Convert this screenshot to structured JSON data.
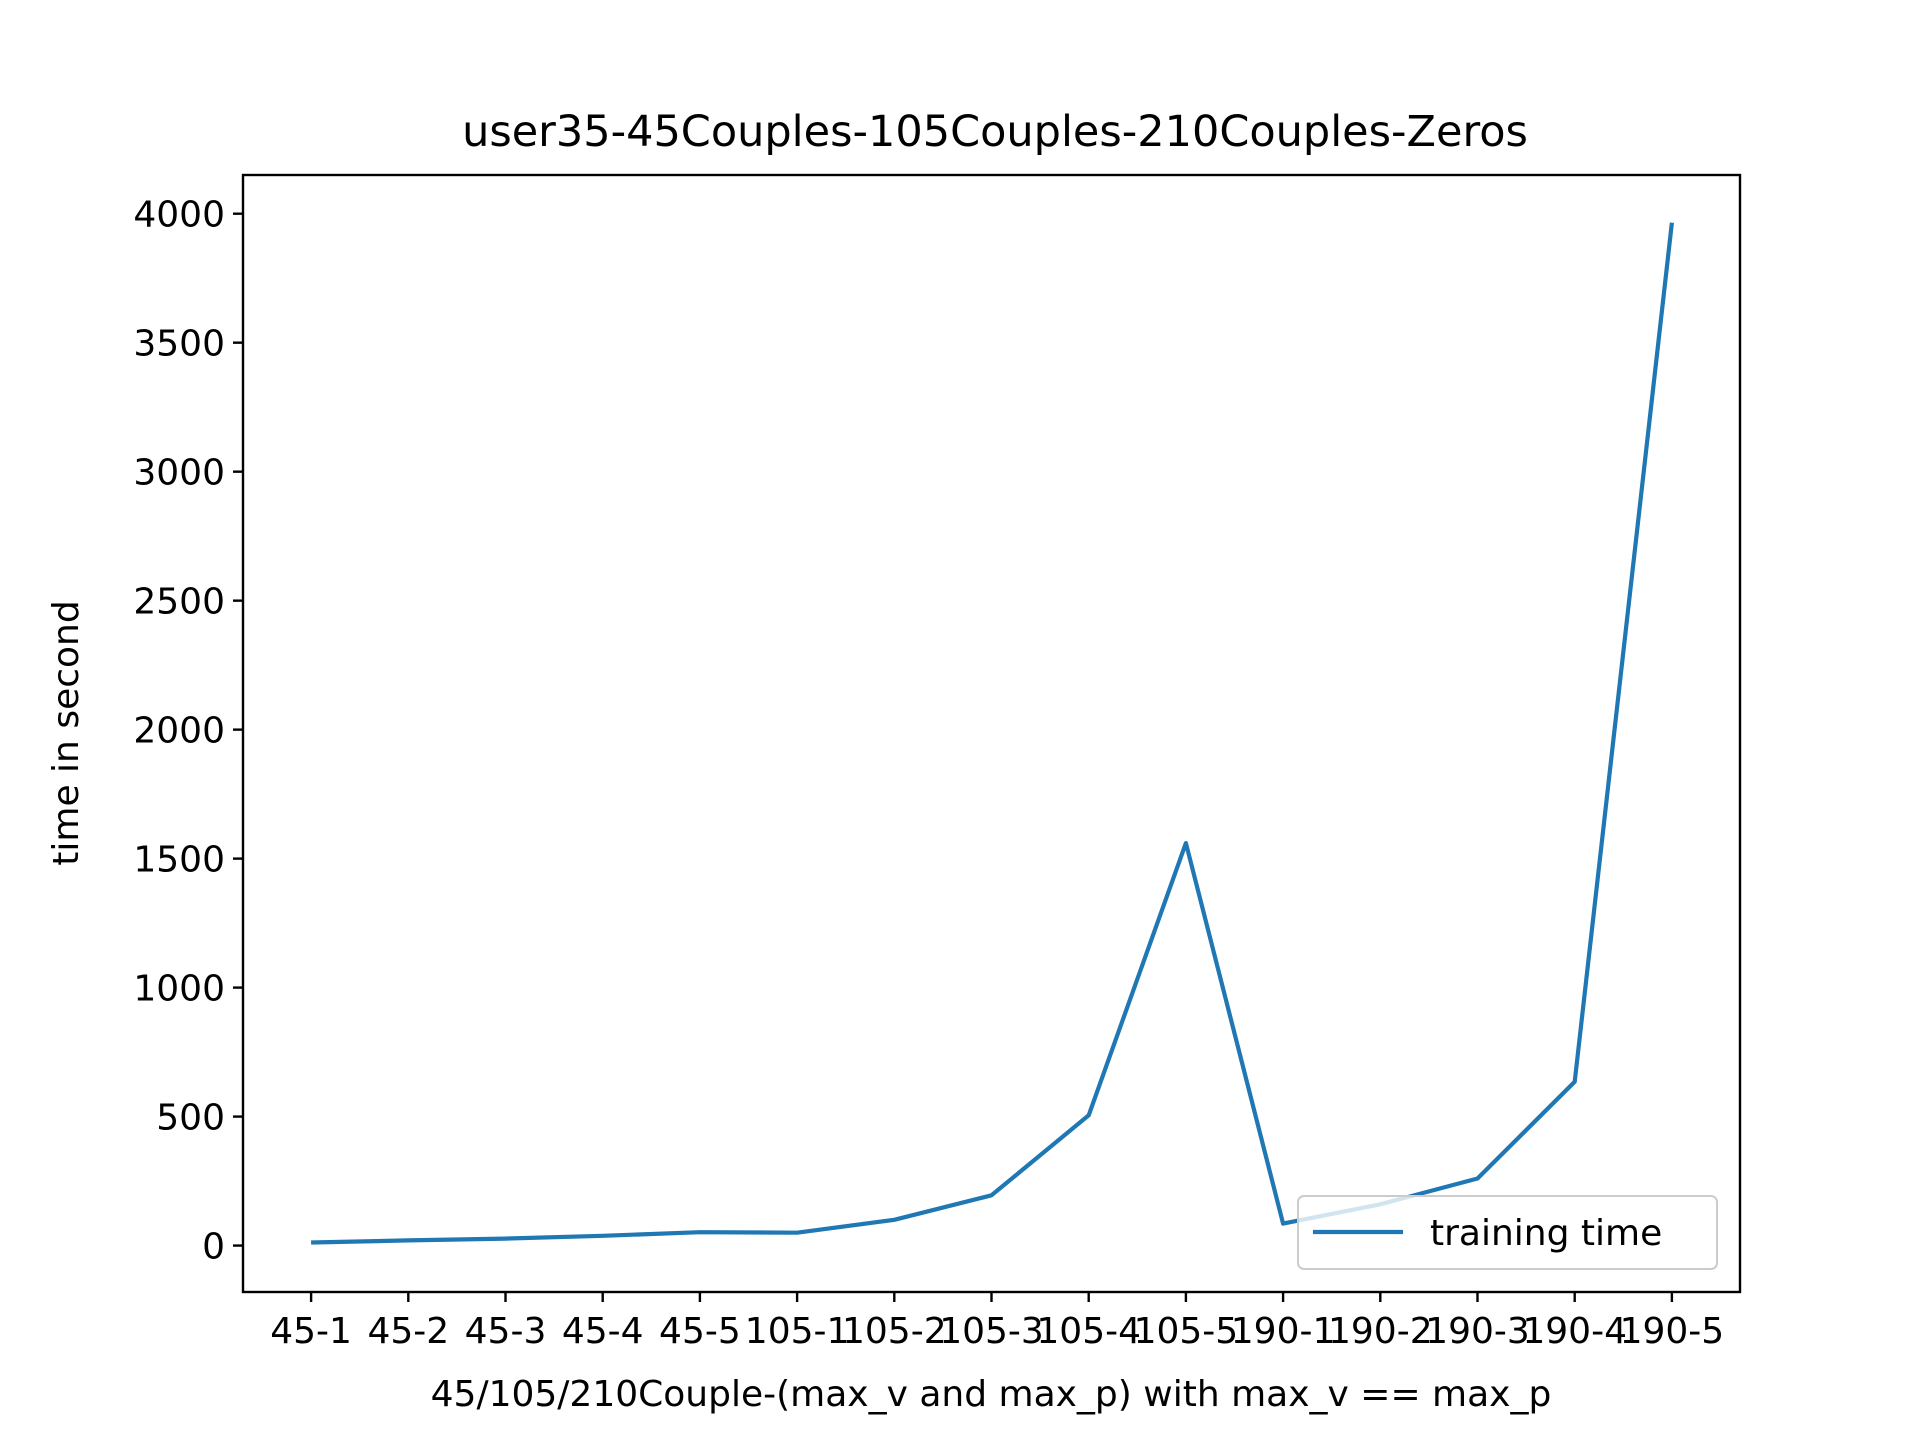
{
  "chart_data": {
    "type": "line",
    "title": "user35-45Couples-105Couples-210Couples-Zeros",
    "xlabel": "45/105/210Couple-(max_v and max_p) with max_v == max_p",
    "ylabel": "time in second",
    "categories": [
      "45-1",
      "45-2",
      "45-3",
      "45-4",
      "45-5",
      "105-1",
      "105-2",
      "105-3",
      "105-4",
      "105-5",
      "190-1",
      "190-2",
      "190-3",
      "190-4",
      "190-5"
    ],
    "series": [
      {
        "name": "training time",
        "color": "#1f77b4",
        "values": [
          12,
          20,
          27,
          38,
          52,
          50,
          100,
          195,
          505,
          1560,
          85,
          160,
          260,
          635,
          3965
        ]
      }
    ],
    "ylim": [
      -180,
      4150
    ],
    "yticks": [
      0,
      500,
      1000,
      1500,
      2000,
      2500,
      3000,
      3500,
      4000
    ],
    "grid": false,
    "legend": "lower right"
  }
}
